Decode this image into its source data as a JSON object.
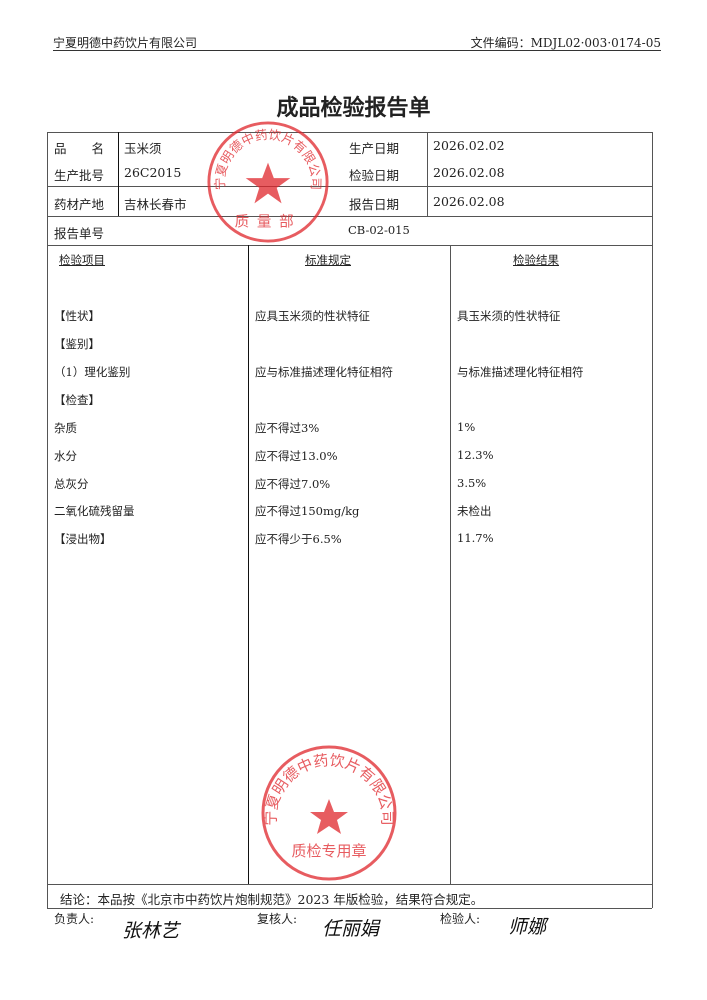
{
  "header": {
    "company": "宁夏明德中药饮片有限公司",
    "doc_code": "文件编码：MDJL02·003·0174-05"
  },
  "title": "成品检验报告单",
  "info": {
    "name_label": "品　　名",
    "name_value": "玉米须",
    "batch_label": "生产批号",
    "batch_value": "26C2015",
    "origin_label": "药材产地",
    "origin_value": "吉林长春市",
    "prod_date_label": "生产日期",
    "prod_date_value": "2026.02.02",
    "test_date_label": "检验日期",
    "test_date_value": "2026.02.08",
    "report_date_label": "报告日期",
    "report_date_value": "2026.02.08",
    "report_no_label": "报告单号",
    "report_no_value": "CB-02-015"
  },
  "table": {
    "headers": [
      "检验项目",
      "标准规定",
      "检验结果"
    ],
    "rows": [
      {
        "item": "【性状】",
        "standard": "应具玉米须的性状特征",
        "result": "具玉米须的性状特征"
      },
      {
        "item": "【鉴别】",
        "standard": "",
        "result": ""
      },
      {
        "item": "（1）理化鉴别",
        "standard": "应与标准描述理化特征相符",
        "result": "与标准描述理化特征相符"
      },
      {
        "item": "【检查】",
        "standard": "",
        "result": ""
      },
      {
        "item": "杂质",
        "standard": "应不得过3%",
        "result": "1%"
      },
      {
        "item": "水分",
        "standard": "应不得过13.0%",
        "result": "12.3%"
      },
      {
        "item": "总灰分",
        "standard": "应不得过7.0%",
        "result": "3.5%"
      },
      {
        "item": "二氧化硫残留量",
        "standard": "应不得过150mg/kg",
        "result": "未检出"
      },
      {
        "item": "【浸出物】",
        "standard": "应不得少于6.5%",
        "result": "11.7%"
      }
    ]
  },
  "conclusion": "结论：本品按《北京市中药饮片炮制规范》2023 年版检验，结果符合规定。",
  "signatures": {
    "responsible_label": "负责人:",
    "responsible_sig": "张林艺",
    "reviewer_label": "复核人:",
    "reviewer_sig": "任丽娟",
    "inspector_label": "检验人:",
    "inspector_sig": "师娜"
  },
  "stamps": {
    "top": {
      "ring_text": "宁夏明德中药饮片有限公司",
      "bottom_text": "质量部"
    },
    "bottom": {
      "ring_text": "宁夏明德中药饮片有限公司",
      "bottom_text": "质检专用章"
    },
    "color": "#e0262c"
  }
}
